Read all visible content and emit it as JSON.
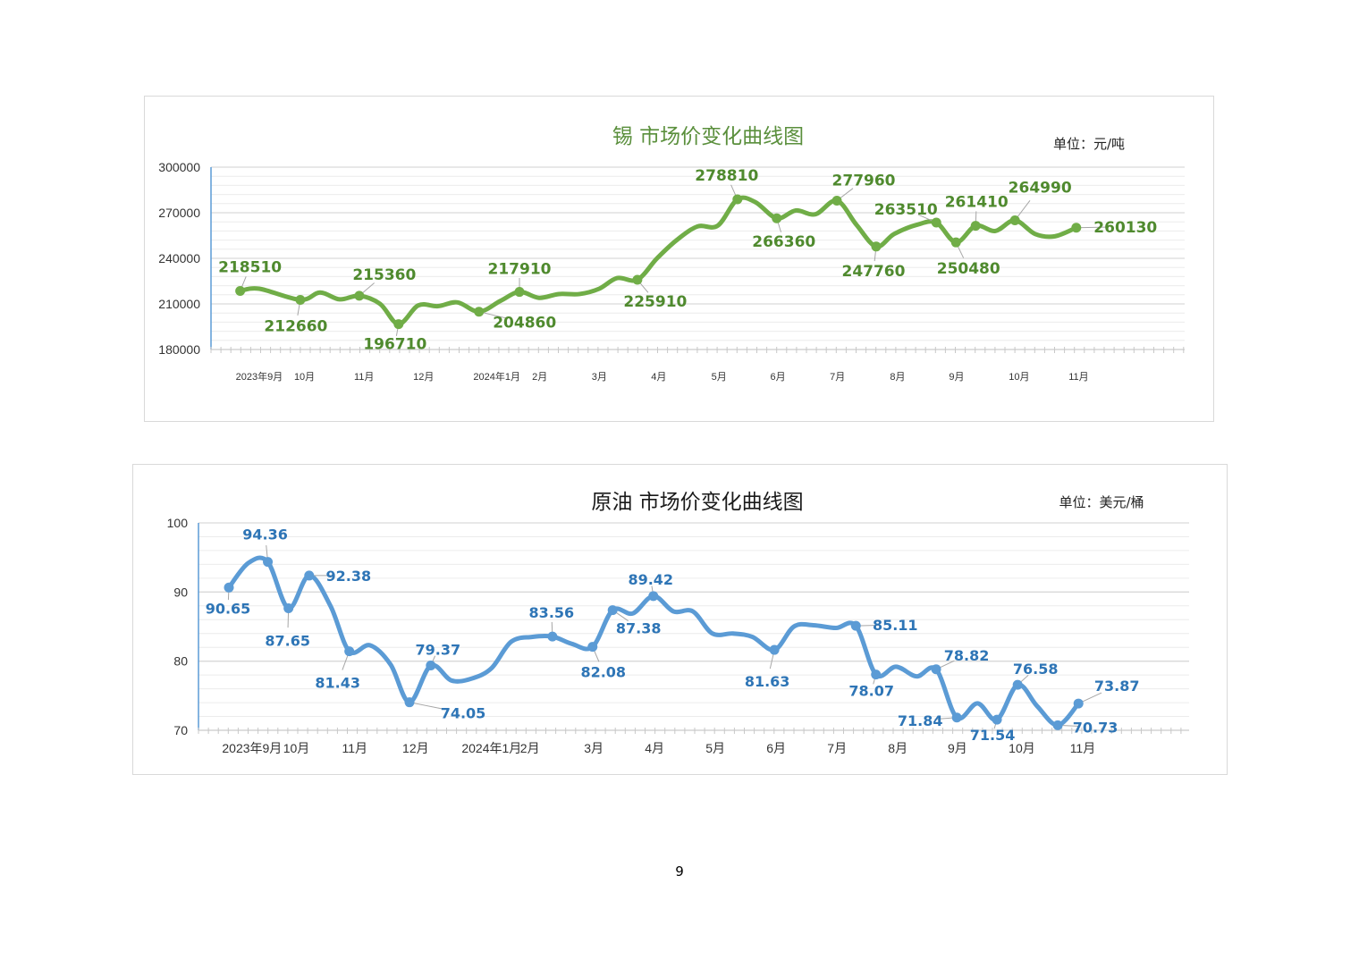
{
  "page_number": "9",
  "chart_data": [
    {
      "type": "line",
      "title": "锡 市场价变化曲线图",
      "unit": "单位：元/吨",
      "color": "#70ad47",
      "label_color": "#4f8a2e",
      "ylim": [
        180000,
        300000
      ],
      "yticks": [
        180000,
        210000,
        240000,
        270000,
        300000
      ],
      "ytick_labels": [
        "180000",
        "210000",
        "240000",
        "270000",
        "300000"
      ],
      "xlim": [
        -0.57,
        15.78
      ],
      "xticks": [
        {
          "x": 0.24,
          "label": "2023年9月"
        },
        {
          "x": 1.0,
          "label": "10月"
        },
        {
          "x": 2.0,
          "label": "11月"
        },
        {
          "x": 3.0,
          "label": "12月"
        },
        {
          "x": 4.23,
          "label": "2024年1月"
        },
        {
          "x": 4.95,
          "label": "2月"
        },
        {
          "x": 5.95,
          "label": "3月"
        },
        {
          "x": 6.95,
          "label": "4月"
        },
        {
          "x": 7.96,
          "label": "5月"
        },
        {
          "x": 8.95,
          "label": "6月"
        },
        {
          "x": 9.95,
          "label": "7月"
        },
        {
          "x": 10.96,
          "label": "8月"
        },
        {
          "x": 11.95,
          "label": "9月"
        },
        {
          "x": 13.0,
          "label": "10月"
        },
        {
          "x": 14.0,
          "label": "11月"
        }
      ],
      "grid": true,
      "points": [
        {
          "x": -0.08,
          "y": 218510,
          "label": "218510"
        },
        {
          "x": 0.24,
          "y": 220000
        },
        {
          "x": 0.93,
          "y": 212660,
          "label": "212660"
        },
        {
          "x": 1.26,
          "y": 217500
        },
        {
          "x": 1.59,
          "y": 213000
        },
        {
          "x": 1.92,
          "y": 215360,
          "label": "215360"
        },
        {
          "x": 2.27,
          "y": 210000
        },
        {
          "x": 2.58,
          "y": 196710,
          "label": "196710"
        },
        {
          "x": 2.91,
          "y": 209000
        },
        {
          "x": 3.24,
          "y": 208500
        },
        {
          "x": 3.57,
          "y": 211000
        },
        {
          "x": 3.93,
          "y": 204860,
          "label": "204860"
        },
        {
          "x": 4.29,
          "y": 212000
        },
        {
          "x": 4.61,
          "y": 217910,
          "label": "217910"
        },
        {
          "x": 4.94,
          "y": 214000
        },
        {
          "x": 5.27,
          "y": 216500
        },
        {
          "x": 5.62,
          "y": 216500
        },
        {
          "x": 5.95,
          "y": 220000
        },
        {
          "x": 6.25,
          "y": 227000
        },
        {
          "x": 6.59,
          "y": 225910,
          "label": "225910"
        },
        {
          "x": 6.92,
          "y": 240000
        },
        {
          "x": 7.25,
          "y": 252000
        },
        {
          "x": 7.6,
          "y": 261000
        },
        {
          "x": 7.94,
          "y": 261500
        },
        {
          "x": 8.27,
          "y": 278810,
          "label": "278810"
        },
        {
          "x": 8.57,
          "y": 277000
        },
        {
          "x": 8.93,
          "y": 266360,
          "label": "266360"
        },
        {
          "x": 9.25,
          "y": 271500
        },
        {
          "x": 9.58,
          "y": 269000
        },
        {
          "x": 9.94,
          "y": 277960,
          "label": "277960"
        },
        {
          "x": 10.27,
          "y": 262000
        },
        {
          "x": 10.6,
          "y": 247760,
          "label": "247760"
        },
        {
          "x": 10.9,
          "y": 256000
        },
        {
          "x": 11.28,
          "y": 262000
        },
        {
          "x": 11.61,
          "y": 263510,
          "label": "263510"
        },
        {
          "x": 11.94,
          "y": 250480,
          "label": "250480"
        },
        {
          "x": 12.27,
          "y": 261410,
          "label": "261410"
        },
        {
          "x": 12.6,
          "y": 258000
        },
        {
          "x": 12.93,
          "y": 264990,
          "label": "264990"
        },
        {
          "x": 13.27,
          "y": 256000
        },
        {
          "x": 13.6,
          "y": 254500
        },
        {
          "x": 13.96,
          "y": 260130,
          "label": "260130"
        }
      ]
    },
    {
      "type": "line",
      "title": "原油 市场价变化曲线图",
      "unit": "单位：美元/桶",
      "color": "#5b9bd5",
      "label_color": "#2e75b6",
      "ylim": [
        70,
        100
      ],
      "yticks": [
        70,
        80,
        90,
        100
      ],
      "ytick_labels": [
        "70",
        "80",
        "90",
        "100"
      ],
      "xlim": [
        -0.57,
        15.72
      ],
      "xticks": [
        {
          "x": 0.31,
          "label": "2023年9月"
        },
        {
          "x": 1.04,
          "label": "10月"
        },
        {
          "x": 2.0,
          "label": "11月"
        },
        {
          "x": 3.0,
          "label": "12月"
        },
        {
          "x": 4.25,
          "label": "2024年1月"
        },
        {
          "x": 4.88,
          "label": "2月"
        },
        {
          "x": 5.93,
          "label": "3月"
        },
        {
          "x": 6.93,
          "label": "4月"
        },
        {
          "x": 7.93,
          "label": "5月"
        },
        {
          "x": 8.93,
          "label": "6月"
        },
        {
          "x": 9.93,
          "label": "7月"
        },
        {
          "x": 10.93,
          "label": "8月"
        },
        {
          "x": 11.91,
          "label": "9月"
        },
        {
          "x": 12.97,
          "label": "10月"
        },
        {
          "x": 13.97,
          "label": "11月"
        }
      ],
      "grid": true,
      "points": [
        {
          "x": -0.07,
          "y": 90.65,
          "label": "90.65"
        },
        {
          "x": 0.25,
          "y": 94.2
        },
        {
          "x": 0.57,
          "y": 94.36,
          "label": "94.36"
        },
        {
          "x": 0.91,
          "y": 87.65,
          "label": "87.65"
        },
        {
          "x": 1.25,
          "y": 92.38,
          "label": "92.38"
        },
        {
          "x": 1.6,
          "y": 88.0
        },
        {
          "x": 1.91,
          "y": 81.43,
          "label": "81.43"
        },
        {
          "x": 2.25,
          "y": 82.3
        },
        {
          "x": 2.59,
          "y": 79.5
        },
        {
          "x": 2.9,
          "y": 74.05,
          "label": "74.05"
        },
        {
          "x": 3.25,
          "y": 79.37,
          "label": "79.37"
        },
        {
          "x": 3.59,
          "y": 77.2
        },
        {
          "x": 3.93,
          "y": 77.5
        },
        {
          "x": 4.25,
          "y": 79.0
        },
        {
          "x": 4.57,
          "y": 82.8
        },
        {
          "x": 4.91,
          "y": 83.5
        },
        {
          "x": 5.25,
          "y": 83.56,
          "label": "83.56"
        },
        {
          "x": 5.57,
          "y": 82.5
        },
        {
          "x": 5.91,
          "y": 82.08,
          "label": "82.08"
        },
        {
          "x": 6.24,
          "y": 87.38,
          "label": "87.38"
        },
        {
          "x": 6.57,
          "y": 86.9
        },
        {
          "x": 6.91,
          "y": 89.42,
          "label": "89.42"
        },
        {
          "x": 7.24,
          "y": 87.2
        },
        {
          "x": 7.56,
          "y": 87.2
        },
        {
          "x": 7.88,
          "y": 84.0
        },
        {
          "x": 8.22,
          "y": 84.0
        },
        {
          "x": 8.54,
          "y": 83.5
        },
        {
          "x": 8.9,
          "y": 81.63,
          "label": "81.63"
        },
        {
          "x": 9.22,
          "y": 85.0
        },
        {
          "x": 9.54,
          "y": 85.2
        },
        {
          "x": 9.91,
          "y": 84.8
        },
        {
          "x": 10.24,
          "y": 85.11,
          "label": "85.11"
        },
        {
          "x": 10.57,
          "y": 78.07,
          "label": "78.07"
        },
        {
          "x": 10.9,
          "y": 79.2
        },
        {
          "x": 11.24,
          "y": 77.8
        },
        {
          "x": 11.56,
          "y": 78.82,
          "label": "78.82"
        },
        {
          "x": 11.9,
          "y": 71.84,
          "label": "71.84"
        },
        {
          "x": 12.24,
          "y": 73.9
        },
        {
          "x": 12.56,
          "y": 71.54,
          "label": "71.54"
        },
        {
          "x": 12.9,
          "y": 76.58,
          "label": "76.58"
        },
        {
          "x": 13.22,
          "y": 73.5
        },
        {
          "x": 13.56,
          "y": 70.73,
          "label": "70.73"
        },
        {
          "x": 13.9,
          "y": 73.87,
          "label": "73.87"
        }
      ]
    }
  ]
}
